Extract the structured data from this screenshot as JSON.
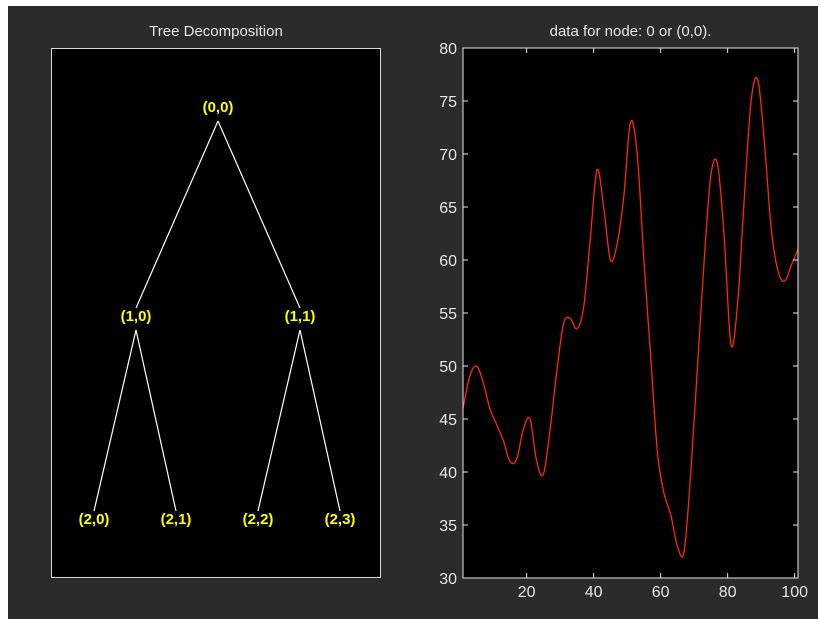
{
  "tree_panel": {
    "title": "Tree Decomposition",
    "node_color": "#ffff00",
    "edge_color": "#ffffff",
    "nodes": [
      {
        "id": "root",
        "label": "(0,0)",
        "depth": 0,
        "index": 0
      },
      {
        "id": "n10",
        "label": "(1,0)",
        "depth": 1,
        "index": 0
      },
      {
        "id": "n11",
        "label": "(1,1)",
        "depth": 1,
        "index": 1
      },
      {
        "id": "n20",
        "label": "(2,0)",
        "depth": 2,
        "index": 0
      },
      {
        "id": "n21",
        "label": "(2,1)",
        "depth": 2,
        "index": 1
      },
      {
        "id": "n22",
        "label": "(2,2)",
        "depth": 2,
        "index": 2
      },
      {
        "id": "n23",
        "label": "(2,3)",
        "depth": 2,
        "index": 3
      }
    ],
    "edges": [
      [
        "root",
        "n10"
      ],
      [
        "root",
        "n11"
      ],
      [
        "n10",
        "n20"
      ],
      [
        "n10",
        "n21"
      ],
      [
        "n11",
        "n22"
      ],
      [
        "n11",
        "n23"
      ]
    ]
  },
  "chart_data": {
    "type": "line",
    "title": "data for node: 0 or (0,0).",
    "xlabel": "",
    "ylabel": "",
    "xlim": [
      1,
      101
    ],
    "ylim": [
      30,
      80
    ],
    "xticks": [
      20,
      40,
      60,
      80,
      100
    ],
    "yticks": [
      30,
      35,
      40,
      45,
      50,
      55,
      60,
      65,
      70,
      75,
      80
    ],
    "grid": false,
    "background": "#000000",
    "axis_color": "#e6e6e6",
    "series": [
      {
        "color": "#ff2a00",
        "x": [
          1,
          3,
          5,
          7,
          9,
          11,
          13,
          15,
          17,
          19,
          21,
          23,
          25,
          27,
          29,
          31,
          33,
          35,
          37,
          39,
          41,
          43,
          45,
          47,
          49,
          51,
          53,
          55,
          57,
          59,
          61,
          63,
          65,
          67,
          69,
          71,
          73,
          75,
          77,
          79,
          81,
          83,
          85,
          87,
          89,
          91,
          93,
          95,
          97,
          99,
          101
        ],
        "y": [
          46,
          49,
          50,
          48.5,
          46,
          44.5,
          43,
          41,
          41.2,
          44,
          45,
          41,
          39.8,
          44,
          49.5,
          54,
          54.5,
          53.5,
          55.5,
          62,
          68.5,
          65,
          60,
          61.5,
          66,
          73,
          70,
          60,
          51,
          42,
          38,
          36,
          33,
          32.5,
          40,
          50,
          60,
          68,
          69,
          62,
          52,
          56,
          66,
          75,
          77,
          71,
          63,
          59,
          58,
          59.5,
          61
        ]
      }
    ]
  }
}
